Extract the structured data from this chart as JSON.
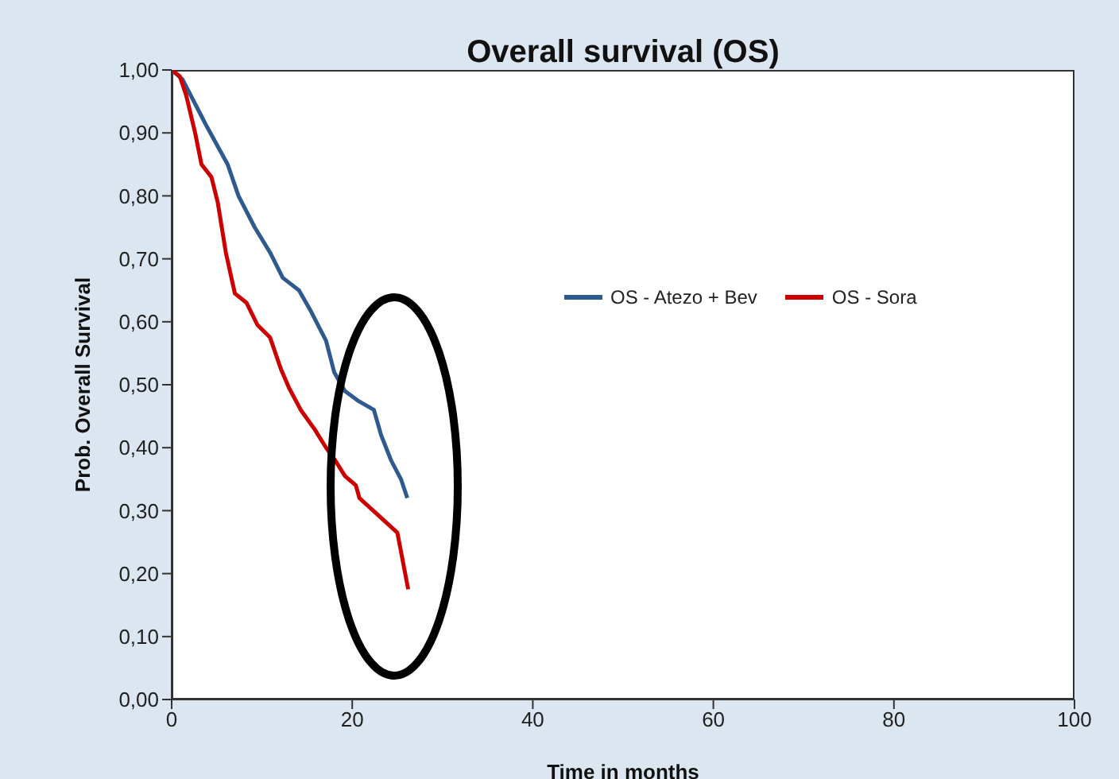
{
  "chart_data": {
    "type": "line",
    "title": "Overall survival (OS)",
    "xlabel": "Time in months",
    "ylabel": "Prob. Overall Survival",
    "xlim": [
      0,
      100
    ],
    "xticks": [
      0,
      20,
      40,
      60,
      80,
      100
    ],
    "ylim": [
      0,
      1
    ],
    "yticks": [
      {
        "value": 0,
        "label": "0,00"
      },
      {
        "value": 0.1,
        "label": "0,10"
      },
      {
        "value": 0.2,
        "label": "0,20"
      },
      {
        "value": 0.3,
        "label": "0,30"
      },
      {
        "value": 0.4,
        "label": "0,40"
      },
      {
        "value": 0.5,
        "label": "0,50"
      },
      {
        "value": 0.6,
        "label": "0,60"
      },
      {
        "value": 0.7,
        "label": "0,70"
      },
      {
        "value": 0.8,
        "label": "0,80"
      },
      {
        "value": 0.9,
        "label": "0,90"
      },
      {
        "value": 1.0,
        "label": "1,00"
      }
    ],
    "grid": false,
    "legend": "right",
    "marker": "none",
    "line_style": "solid",
    "series": [
      {
        "name": "OS - Atezo + Bev",
        "color": "#2f5a8f",
        "x": [
          0,
          1.2,
          3.9,
          6.2,
          7.4,
          9.2,
          10.9,
          12.3,
          14.1,
          15.3,
          17.1,
          18,
          19.2,
          20.6,
          22.4,
          23.2,
          24.3,
          25.4,
          26.1
        ],
        "values": [
          1.0,
          0.985,
          0.91,
          0.85,
          0.8,
          0.75,
          0.71,
          0.67,
          0.65,
          0.62,
          0.57,
          0.52,
          0.49,
          0.475,
          0.46,
          0.42,
          0.38,
          0.35,
          0.32
        ]
      },
      {
        "name": "OS - Sora",
        "color": "#cc0000",
        "x": [
          0,
          0.9,
          1.6,
          2.6,
          3.3,
          4.4,
          5.1,
          6,
          7,
          8.3,
          9.5,
          10.9,
          12.1,
          13,
          14.3,
          15.8,
          17.1,
          18.1,
          19.2,
          20.4,
          20.8,
          25,
          26.2
        ],
        "values": [
          1.0,
          0.99,
          0.96,
          0.9,
          0.85,
          0.83,
          0.79,
          0.71,
          0.645,
          0.63,
          0.595,
          0.575,
          0.525,
          0.495,
          0.46,
          0.43,
          0.4,
          0.38,
          0.355,
          0.34,
          0.32,
          0.265,
          0.175
        ]
      }
    ]
  }
}
